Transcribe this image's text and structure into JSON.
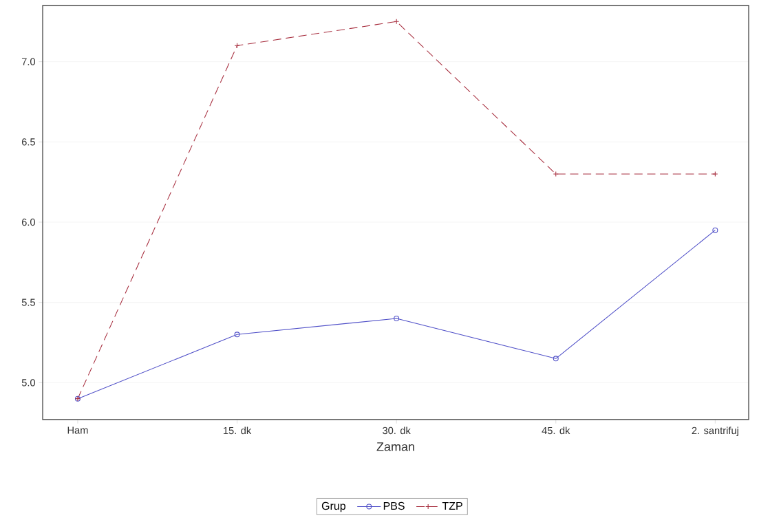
{
  "chart_data": {
    "type": "line",
    "xlabel": "Zaman",
    "legend_title": "Grup",
    "legend": "bottom",
    "grid": "y",
    "categories": [
      "Ham",
      "15. dk",
      "30. dk",
      "45. dk",
      "2. santrifuj"
    ],
    "ylim": [
      4.77,
      7.35
    ],
    "yticks": [
      {
        "value": 5.0,
        "label": "5.0"
      },
      {
        "value": 5.5,
        "label": "5.5"
      },
      {
        "value": 6.0,
        "label": "6.0"
      },
      {
        "value": 6.5,
        "label": "6.5"
      },
      {
        "value": 7.0,
        "label": "7.0"
      }
    ],
    "series": [
      {
        "name": "PBS",
        "color": "#5050c8",
        "marker": "circle",
        "line_style": "solid",
        "values": [
          4.9,
          5.3,
          5.4,
          5.15,
          5.95
        ]
      },
      {
        "name": "TZP",
        "color": "#a83040",
        "marker": "cross",
        "line_style": "dashed",
        "values": [
          4.9,
          7.1,
          7.25,
          6.3,
          6.3
        ]
      }
    ]
  }
}
